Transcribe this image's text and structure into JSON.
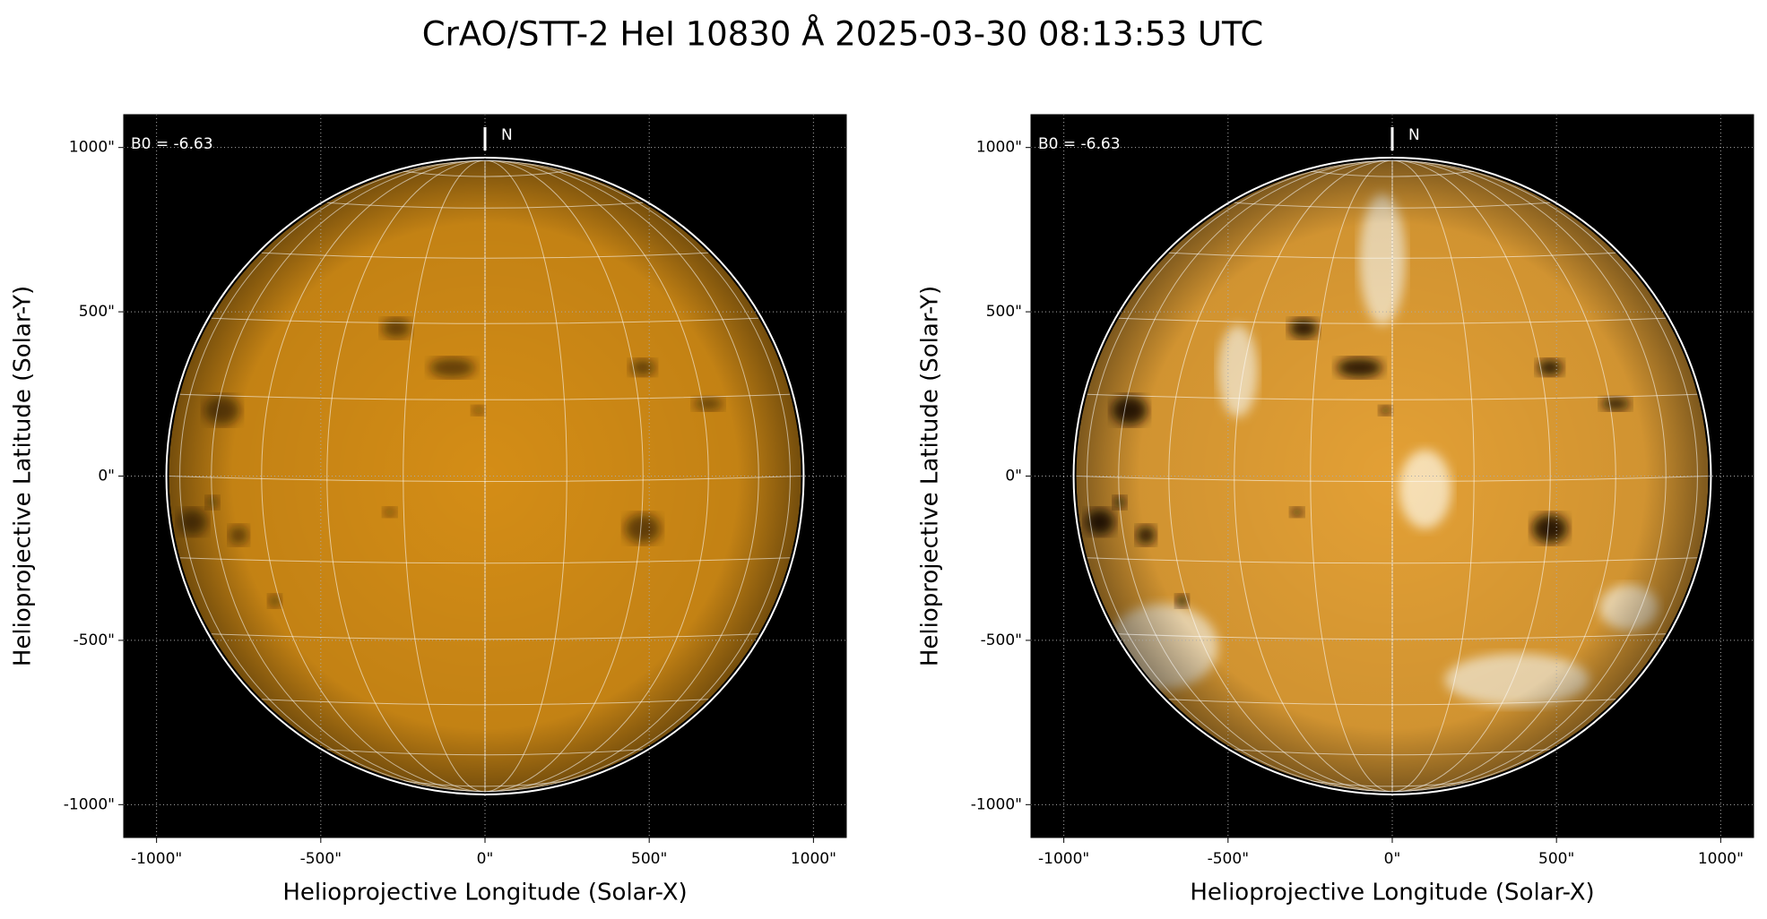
{
  "title": "CrAO/STT-2 HeI 10830 Å 2025-03-30 08:13:53 UTC",
  "chart_data": [
    {
      "type": "image",
      "xlabel": "Helioprojective Longitude (Solar-X)",
      "ylabel": "Helioprojective Latitude (Solar-Y)",
      "annotation": "B0 = -6.63",
      "north_label": "N",
      "color": "#d48d16",
      "grid": true,
      "disk_radius": 962,
      "xlim": [
        -1100,
        1100
      ],
      "ylim": [
        -1100,
        1100
      ],
      "xticks": [
        {
          "value": -1000,
          "label": "-1000\""
        },
        {
          "value": -500,
          "label": "-500\""
        },
        {
          "value": 0,
          "label": "0\""
        },
        {
          "value": 500,
          "label": "500\""
        },
        {
          "value": 1000,
          "label": "1000\""
        }
      ],
      "yticks": [
        {
          "value": -1000,
          "label": "-1000\""
        },
        {
          "value": -500,
          "label": "-500\""
        },
        {
          "value": 0,
          "label": "0\""
        },
        {
          "value": 500,
          "label": "500\""
        },
        {
          "value": 1000,
          "label": "1000\""
        }
      ]
    },
    {
      "type": "image",
      "xlabel": "Helioprojective Longitude (Solar-X)",
      "ylabel": "Helioprojective Latitude (Solar-Y)",
      "annotation": "B0 = -6.63",
      "north_label": "N",
      "color": "#e3a035",
      "grid": true,
      "disk_radius": 962,
      "xlim": [
        -1100,
        1100
      ],
      "ylim": [
        -1100,
        1100
      ],
      "xticks": [
        {
          "value": -1000,
          "label": "-1000\""
        },
        {
          "value": -500,
          "label": "-500\""
        },
        {
          "value": 0,
          "label": "0\""
        },
        {
          "value": 500,
          "label": "500\""
        },
        {
          "value": 1000,
          "label": "1000\""
        }
      ],
      "yticks": [
        {
          "value": -1000,
          "label": "-1000\""
        },
        {
          "value": -500,
          "label": "-500\""
        },
        {
          "value": 0,
          "label": "0\""
        },
        {
          "value": 500,
          "label": "500\""
        },
        {
          "value": 1000,
          "label": "1000\""
        }
      ]
    }
  ]
}
